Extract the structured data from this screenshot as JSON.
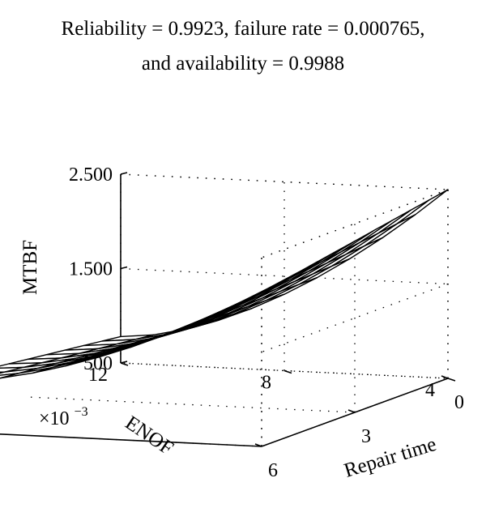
{
  "chart_data": {
    "type": "surface",
    "title_line1": "Reliability = 0.9923, failure rate = 0.000765,",
    "title_line2": "and availability = 0.9988",
    "xlabel": "Repair time",
    "ylabel": "ENOF",
    "zlabel": "MTBF",
    "y_multiplier_text": "×10",
    "y_multiplier_exp": "−3",
    "x_ticks": [
      "0",
      "3",
      "6"
    ],
    "y_ticks": [
      "4",
      "8",
      "12"
    ],
    "z_ticks": [
      "500",
      "1.500",
      "2.500"
    ],
    "xlim": [
      0,
      6
    ],
    "ylim": [
      4,
      12
    ],
    "zlim": [
      500,
      2500
    ],
    "grid": true,
    "surface": {
      "x": [
        0,
        0.6,
        1.2,
        1.8,
        2.4,
        3.0,
        3.6,
        4.2,
        4.8,
        5.4,
        6.0
      ],
      "y": [
        4,
        4.8,
        5.6,
        6.4,
        7.2,
        8.0,
        8.8,
        9.6,
        10.4,
        11.2,
        12
      ],
      "z_corners": {
        "x0_y4": 2500,
        "x6_y4": 2130,
        "x6_y12": 1020,
        "x0_y12": 780
      }
    }
  }
}
